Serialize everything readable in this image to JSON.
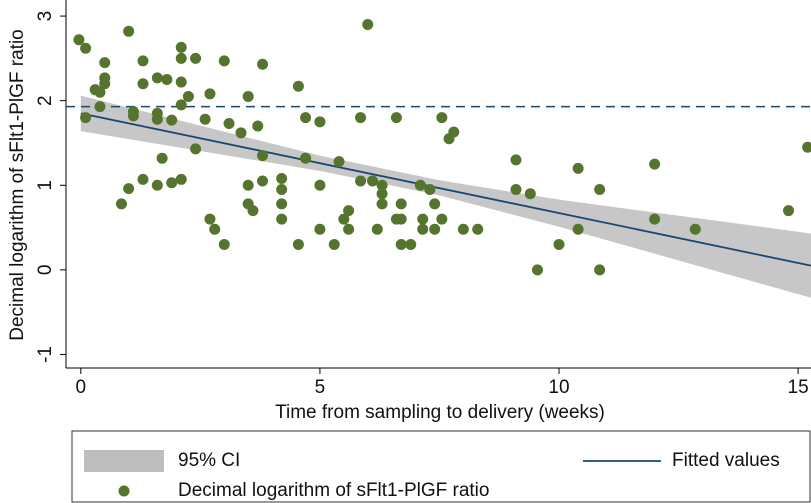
{
  "chart_data": {
    "type": "scatter",
    "x_label": "Time from sampling to delivery (weeks)",
    "y_label": "Decimal logarithm of sFlt1-PlGF ratio",
    "xlim": [
      -0.31,
      15.27
    ],
    "ylim": [
      -1.16,
      3.19
    ],
    "xticks": [
      0,
      5,
      10,
      15
    ],
    "yticks": [
      -1,
      0,
      1,
      2,
      3
    ],
    "reference_line": {
      "value": 1.93,
      "style": "dashed",
      "color": "#1a476f"
    },
    "series": [
      {
        "name": "95% CI",
        "type": "area",
        "color": "#bdbdbd",
        "x": [
          0,
          5,
          7.5,
          10,
          15.27
        ],
        "lower": [
          1.64,
          1.17,
          0.88,
          0.51,
          -0.33
        ],
        "upper": [
          2.06,
          1.35,
          1.06,
          0.83,
          0.43
        ]
      },
      {
        "name": "Fitted values",
        "type": "line",
        "color": "#1a476f",
        "x": [
          0,
          15.27
        ],
        "values": [
          1.85,
          0.05
        ]
      },
      {
        "name": "Decimal logarithm of sFlt1-PlGF ratio",
        "type": "scatter",
        "color": "#55752f",
        "x": [
          -0.04,
          0.1,
          0.1,
          0.3,
          0.4,
          0.4,
          0.5,
          0.5,
          0.5,
          0.85,
          1.0,
          1.0,
          1.1,
          1.1,
          1.3,
          1.3,
          1.3,
          1.6,
          1.6,
          1.6,
          1.6,
          1.7,
          1.8,
          1.9,
          1.9,
          2.1,
          2.1,
          2.1,
          2.1,
          2.1,
          2.25,
          2.4,
          2.4,
          2.6,
          2.7,
          2.7,
          2.8,
          3.0,
          3.0,
          3.1,
          3.35,
          3.5,
          3.5,
          3.5,
          3.6,
          3.7,
          3.8,
          3.8,
          3.8,
          4.2,
          4.2,
          4.2,
          4.2,
          4.55,
          4.55,
          4.7,
          4.7,
          5.0,
          5.0,
          5.0,
          5.3,
          5.4,
          5.5,
          5.6,
          5.6,
          5.85,
          5.85,
          6.0,
          6.1,
          6.2,
          6.3,
          6.3,
          6.3,
          6.6,
          6.6,
          6.7,
          6.7,
          6.7,
          6.9,
          7.1,
          7.15,
          7.15,
          7.3,
          7.4,
          7.4,
          7.55,
          7.55,
          7.7,
          7.8,
          8.0,
          8.3,
          9.1,
          9.1,
          9.4,
          9.55,
          10.0,
          10.4,
          10.4,
          10.85,
          10.85,
          12.0,
          12.0,
          12.85,
          14.8,
          15.2
        ],
        "values": [
          2.72,
          2.62,
          1.8,
          2.13,
          2.1,
          1.93,
          2.2,
          2.27,
          2.45,
          0.78,
          0.96,
          2.82,
          1.87,
          1.82,
          2.47,
          2.2,
          1.07,
          2.27,
          1.85,
          1.78,
          1.0,
          1.32,
          2.25,
          1.77,
          1.03,
          2.63,
          2.5,
          2.22,
          1.95,
          1.07,
          2.05,
          2.5,
          1.43,
          1.78,
          2.08,
          0.6,
          0.48,
          0.3,
          2.47,
          1.73,
          1.62,
          2.05,
          1.0,
          0.78,
          0.7,
          1.7,
          1.35,
          2.43,
          1.05,
          1.08,
          0.95,
          0.78,
          0.6,
          2.17,
          0.3,
          1.8,
          1.32,
          1.75,
          1.0,
          0.48,
          0.3,
          1.28,
          0.6,
          0.7,
          0.48,
          1.8,
          1.05,
          2.9,
          1.05,
          0.48,
          1.0,
          0.9,
          0.78,
          1.8,
          0.6,
          0.6,
          0.78,
          0.3,
          0.3,
          1.0,
          0.6,
          0.48,
          0.95,
          0.78,
          0.48,
          0.6,
          1.8,
          1.55,
          1.63,
          0.48,
          0.48,
          1.3,
          0.95,
          0.9,
          0.0,
          0.3,
          1.2,
          0.48,
          0.95,
          0.0,
          1.25,
          0.6,
          0.48,
          0.7,
          1.45
        ]
      }
    ]
  }
}
